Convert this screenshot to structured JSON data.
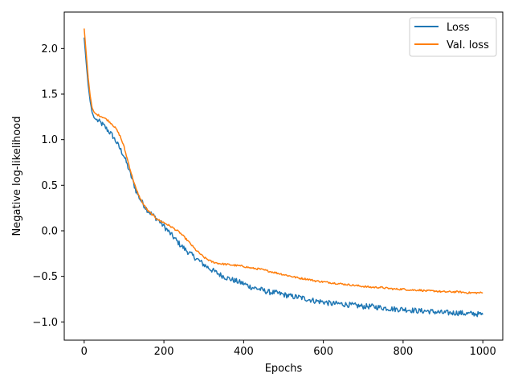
{
  "chart_data": {
    "type": "line",
    "xlabel": "Epochs",
    "ylabel": "Negative log-likelihood",
    "xlim": [
      -50,
      1050
    ],
    "ylim": [
      -1.2,
      2.4
    ],
    "xticks": [
      0,
      200,
      400,
      600,
      800,
      1000
    ],
    "yticks": [
      -1.0,
      -0.5,
      0.0,
      0.5,
      1.0,
      1.5,
      2.0
    ],
    "xtick_labels": [
      "0",
      "200",
      "400",
      "600",
      "800",
      "1000"
    ],
    "ytick_labels": [
      "−1.0",
      "−0.5",
      "0.0",
      "0.5",
      "1.0",
      "1.5",
      "2.0"
    ],
    "grid": false,
    "legend_position": "top-right",
    "series": [
      {
        "name": "Loss",
        "color": "#1f77b4",
        "noise": 0.03,
        "x": [
          0,
          5,
          10,
          15,
          20,
          25,
          30,
          40,
          50,
          60,
          70,
          80,
          90,
          100,
          110,
          120,
          130,
          140,
          150,
          160,
          170,
          180,
          190,
          200,
          220,
          240,
          260,
          280,
          300,
          320,
          340,
          360,
          380,
          400,
          420,
          440,
          460,
          480,
          500,
          520,
          540,
          560,
          580,
          600,
          620,
          640,
          660,
          680,
          700,
          720,
          740,
          760,
          780,
          800,
          820,
          840,
          860,
          880,
          900,
          920,
          940,
          960,
          980,
          1000
        ],
        "y": [
          2.12,
          1.85,
          1.6,
          1.42,
          1.3,
          1.24,
          1.22,
          1.19,
          1.15,
          1.1,
          1.05,
          0.98,
          0.9,
          0.82,
          0.7,
          0.57,
          0.44,
          0.35,
          0.28,
          0.22,
          0.18,
          0.14,
          0.1,
          0.05,
          -0.05,
          -0.15,
          -0.23,
          -0.3,
          -0.37,
          -0.43,
          -0.48,
          -0.52,
          -0.55,
          -0.58,
          -0.62,
          -0.64,
          -0.67,
          -0.68,
          -0.7,
          -0.72,
          -0.73,
          -0.75,
          -0.77,
          -0.78,
          -0.8,
          -0.8,
          -0.81,
          -0.82,
          -0.83,
          -0.83,
          -0.84,
          -0.85,
          -0.86,
          -0.86,
          -0.87,
          -0.88,
          -0.88,
          -0.89,
          -0.9,
          -0.9,
          -0.9,
          -0.91,
          -0.91,
          -0.92
        ]
      },
      {
        "name": "Val. loss",
        "color": "#ff7f0e",
        "noise": 0.01,
        "x": [
          0,
          5,
          10,
          15,
          20,
          25,
          30,
          40,
          50,
          60,
          70,
          80,
          90,
          100,
          110,
          120,
          130,
          140,
          150,
          160,
          170,
          180,
          190,
          200,
          220,
          240,
          260,
          280,
          300,
          320,
          340,
          360,
          380,
          400,
          420,
          440,
          460,
          480,
          500,
          520,
          540,
          560,
          580,
          600,
          620,
          640,
          660,
          680,
          700,
          720,
          740,
          760,
          780,
          800,
          820,
          840,
          860,
          880,
          900,
          920,
          940,
          960,
          980,
          1000
        ],
        "y": [
          2.22,
          1.95,
          1.68,
          1.48,
          1.35,
          1.3,
          1.28,
          1.26,
          1.24,
          1.21,
          1.17,
          1.12,
          1.04,
          0.92,
          0.76,
          0.6,
          0.46,
          0.36,
          0.28,
          0.22,
          0.18,
          0.14,
          0.11,
          0.09,
          0.04,
          -0.02,
          -0.11,
          -0.21,
          -0.29,
          -0.34,
          -0.36,
          -0.37,
          -0.38,
          -0.39,
          -0.41,
          -0.42,
          -0.44,
          -0.46,
          -0.48,
          -0.5,
          -0.52,
          -0.53,
          -0.55,
          -0.56,
          -0.57,
          -0.58,
          -0.59,
          -0.6,
          -0.61,
          -0.62,
          -0.62,
          -0.63,
          -0.64,
          -0.64,
          -0.65,
          -0.65,
          -0.66,
          -0.66,
          -0.67,
          -0.67,
          -0.67,
          -0.68,
          -0.68,
          -0.68
        ]
      }
    ]
  }
}
